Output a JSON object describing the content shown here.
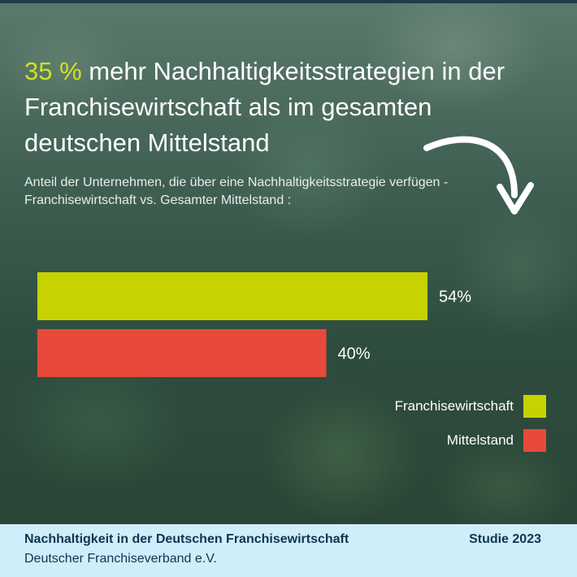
{
  "headline": {
    "accent": "35 %",
    "rest": " mehr Nachhaltigkeitsstrategien in der Franchisewirtschaft als im gesamten deutschen Mittelstand"
  },
  "subtitle": "Anteil der Unternehmen, die über eine Nachhaltigkeitsstrategie verfügen - Franchisewirtschaft vs. Gesamter Mittelstand :",
  "colors": {
    "franchise": "#c6d300",
    "mittelstand": "#e8493a",
    "accent_text": "#d3e021",
    "footer_bg": "#cfeefa",
    "footer_text": "#0f3550"
  },
  "chart_data": {
    "type": "bar",
    "orientation": "horizontal",
    "categories": [
      "Franchisewirtschaft",
      "Mittelstand"
    ],
    "values": [
      54,
      40
    ],
    "value_labels": [
      "54%",
      "40%"
    ],
    "unit": "%",
    "xlim": [
      0,
      100
    ],
    "grid": false,
    "legend": {
      "placement": "bottom-right",
      "entries": [
        "Franchisewirtschaft",
        "Mittelstand"
      ]
    }
  },
  "legend": {
    "franchise": "Franchisewirtschaft",
    "mittelstand": "Mittelstand"
  },
  "footer": {
    "title": "Nachhaltigkeit in der Deutschen Franchisewirtschaft",
    "subtitle": "Deutscher Franchiseverband e.V.",
    "study": "Studie 2023"
  }
}
